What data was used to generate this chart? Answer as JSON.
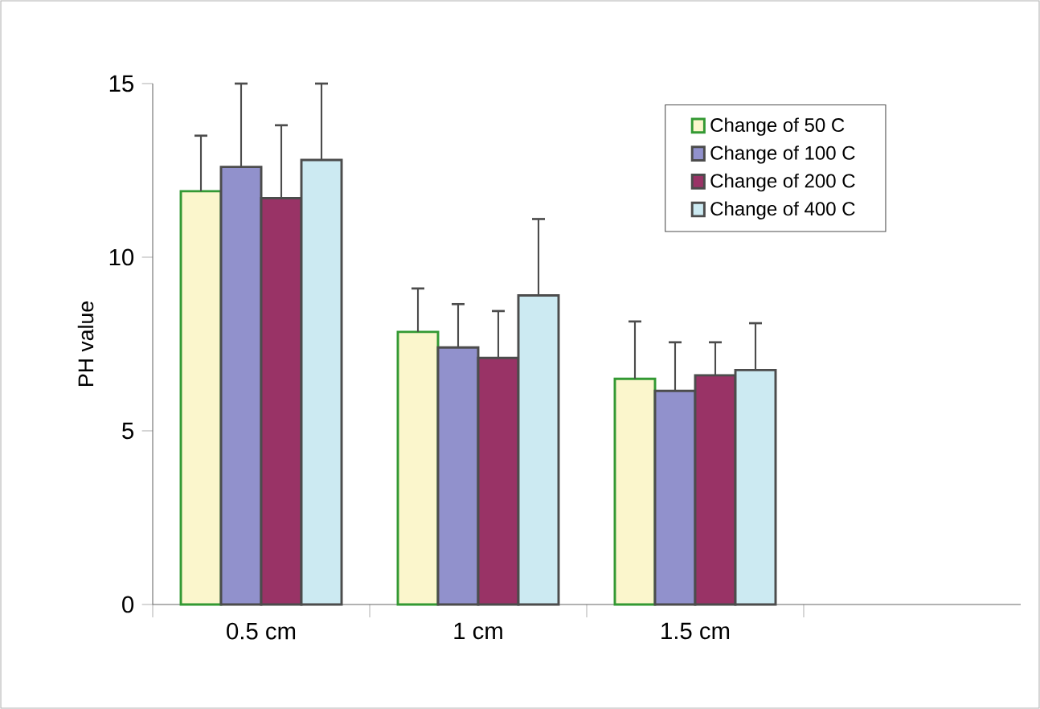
{
  "chart_data": {
    "type": "bar",
    "ylabel": "PH value",
    "categories": [
      "0.5 cm",
      "1 cm",
      "1.5 cm",
      null
    ],
    "ylim": [
      0,
      15
    ],
    "yticks": [
      0,
      5,
      10,
      15
    ],
    "legend": "top right",
    "series": [
      {
        "name": "Change of 50 C",
        "color": "#fbf6cc",
        "values": [
          11.9,
          7.85,
          6.5,
          null
        ],
        "errors": [
          [
            11.9,
            13.5
          ],
          [
            7.85,
            9.1
          ],
          [
            6.5,
            8.15
          ],
          null
        ]
      },
      {
        "name": "Change of 100 C",
        "color": "#9191cc",
        "values": [
          12.6,
          7.4,
          6.15,
          null
        ],
        "errors": [
          [
            12.6,
            15.0
          ],
          [
            7.4,
            8.65
          ],
          [
            6.15,
            7.55
          ],
          null
        ]
      },
      {
        "name": "Change of 200 C",
        "color": "#993366",
        "values": [
          11.7,
          7.1,
          6.6,
          null
        ],
        "errors": [
          [
            11.7,
            13.8
          ],
          [
            7.1,
            8.45
          ],
          [
            6.6,
            7.55
          ],
          null
        ]
      },
      {
        "name": "Change of 400 C",
        "color": "#cceaf2",
        "values": [
          12.8,
          8.9,
          6.75,
          null
        ],
        "errors": [
          [
            12.8,
            15.0
          ],
          [
            8.9,
            11.1
          ],
          [
            6.75,
            8.1
          ],
          null
        ]
      }
    ]
  }
}
